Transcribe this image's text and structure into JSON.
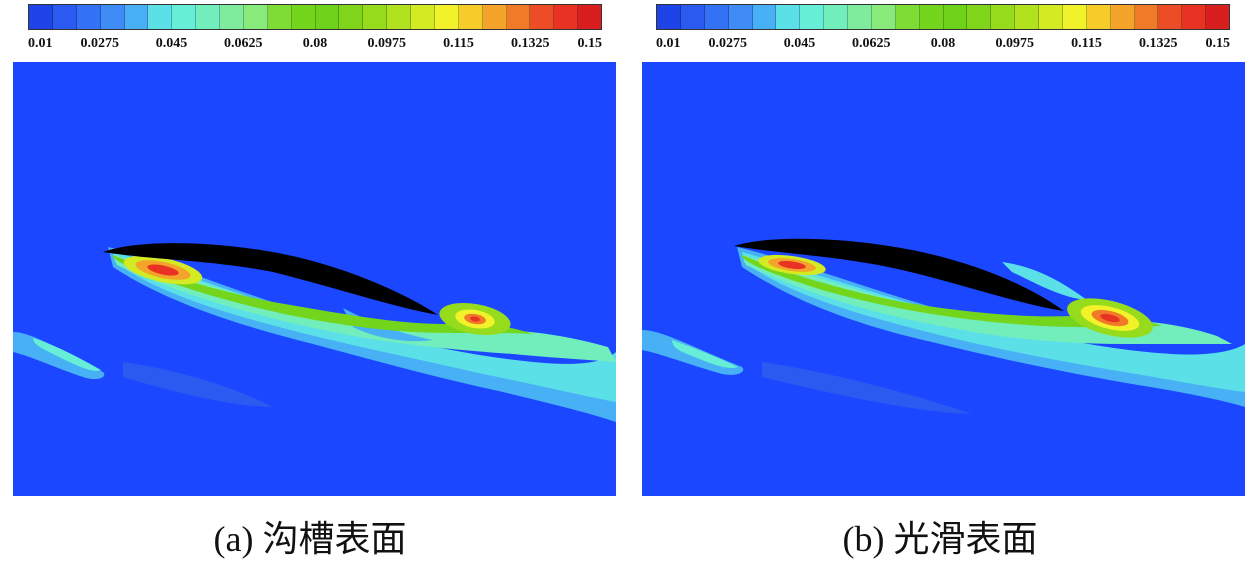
{
  "colorbar": {
    "tick_labels": [
      "0.01",
      "0.0275",
      "0.045",
      "0.0625",
      "0.08",
      "0.0975",
      "0.115",
      "0.1325",
      "0.15"
    ],
    "colors": [
      "#1e44e8",
      "#2a5af0",
      "#3472f5",
      "#3f8cf7",
      "#48b0f5",
      "#5be0e8",
      "#66eed7",
      "#72eebc",
      "#7eec9c",
      "#87ea7a",
      "#7fdc34",
      "#74d61c",
      "#6fd21a",
      "#7fd51a",
      "#96dc1d",
      "#b2e120",
      "#d4ea22",
      "#f2f22a",
      "#f6cc2a",
      "#f4a42a",
      "#f07a28",
      "#ec4c26",
      "#e83224",
      "#d81e1e"
    ]
  },
  "panels": [
    {
      "caption": "(a) 沟槽表面"
    },
    {
      "caption": "(b) 光滑表面"
    }
  ]
}
